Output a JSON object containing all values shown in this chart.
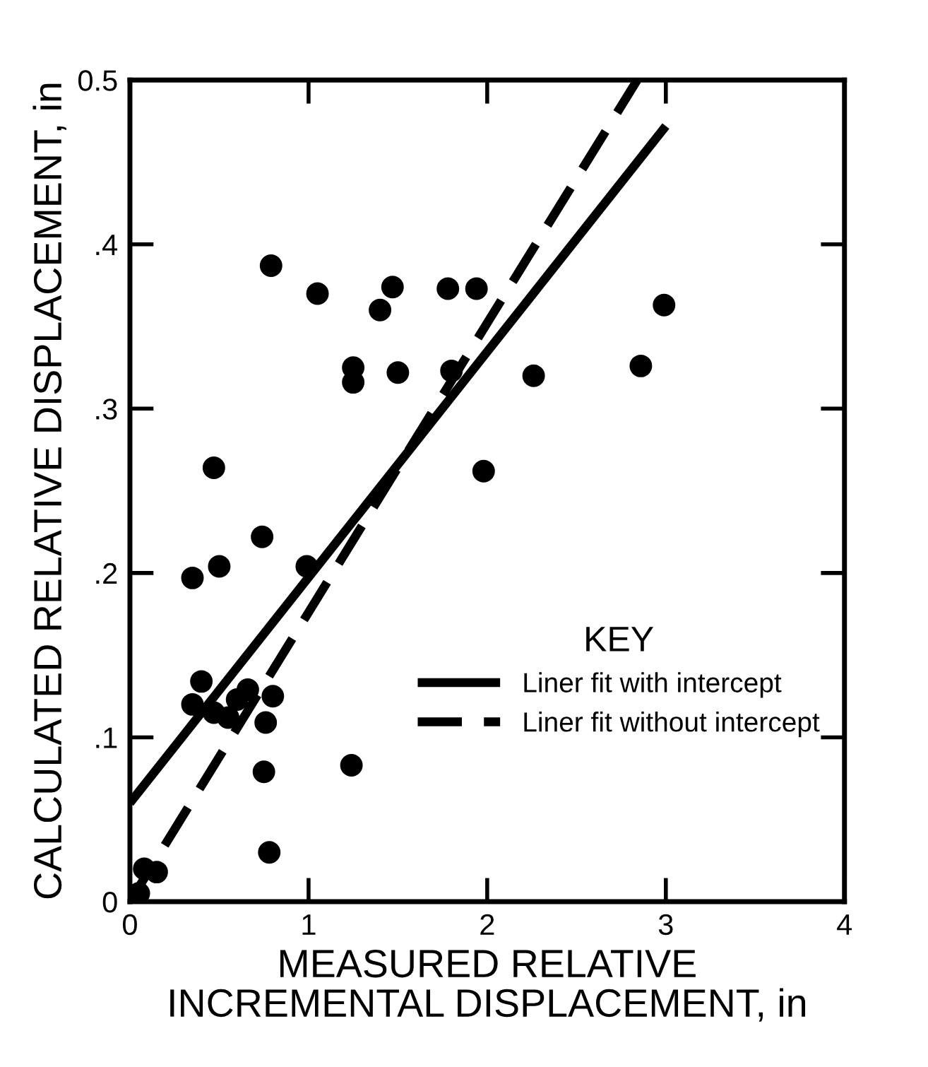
{
  "chart_data": {
    "type": "scatter",
    "xlabel": "MEASURED RELATIVE\nINCREMENTAL DISPLACEMENT, in",
    "ylabel": "CALCULATED RELATIVE DISPLACEMENT, in",
    "legend_title": "KEY",
    "xlim": [
      0,
      4
    ],
    "ylim": [
      0,
      0.5
    ],
    "xticks": [
      0,
      1,
      2,
      3,
      4
    ],
    "yticks": [
      {
        "value": 0,
        "label": "0"
      },
      {
        "value": 0.1,
        "label": ".1"
      },
      {
        "value": 0.2,
        "label": ".2"
      },
      {
        "value": 0.3,
        "label": ".3"
      },
      {
        "value": 0.4,
        "label": ".4"
      },
      {
        "value": 0.5,
        "label": "0.5"
      }
    ],
    "grid": false,
    "legend": "lower right",
    "series": [
      {
        "color": "#000000",
        "marker": "circle",
        "x": [
          0.79,
          1.05,
          1.47,
          1.4,
          1.78,
          1.94,
          1.25,
          1.25,
          1.5,
          1.8,
          2.99,
          2.86,
          2.26,
          1.98,
          0.47,
          0.74,
          0.5,
          0.35,
          0.99,
          0.4,
          0.35,
          0.47,
          0.55,
          0.6,
          0.66,
          0.8,
          0.76,
          0.75,
          1.24,
          0.78,
          0.05,
          0.08,
          0.15
        ],
        "values": [
          0.387,
          0.37,
          0.374,
          0.36,
          0.373,
          0.373,
          0.325,
          0.316,
          0.322,
          0.323,
          0.363,
          0.326,
          0.32,
          0.262,
          0.264,
          0.222,
          0.204,
          0.197,
          0.204,
          0.134,
          0.12,
          0.115,
          0.112,
          0.123,
          0.129,
          0.125,
          0.109,
          0.079,
          0.083,
          0.03,
          0.005,
          0.02,
          0.018
        ]
      },
      {
        "type": "line",
        "marker": "none",
        "name": "Liner fit with intercept",
        "color": "#000000",
        "line_style": "solid",
        "x": [
          0,
          3.0
        ],
        "values": [
          0.06,
          0.472
        ]
      },
      {
        "type": "line",
        "marker": "none",
        "name": "Liner fit without intercept",
        "color": "#000000",
        "line_style": "dashed",
        "x": [
          0,
          2.84
        ],
        "values": [
          0,
          0.5
        ]
      }
    ]
  }
}
